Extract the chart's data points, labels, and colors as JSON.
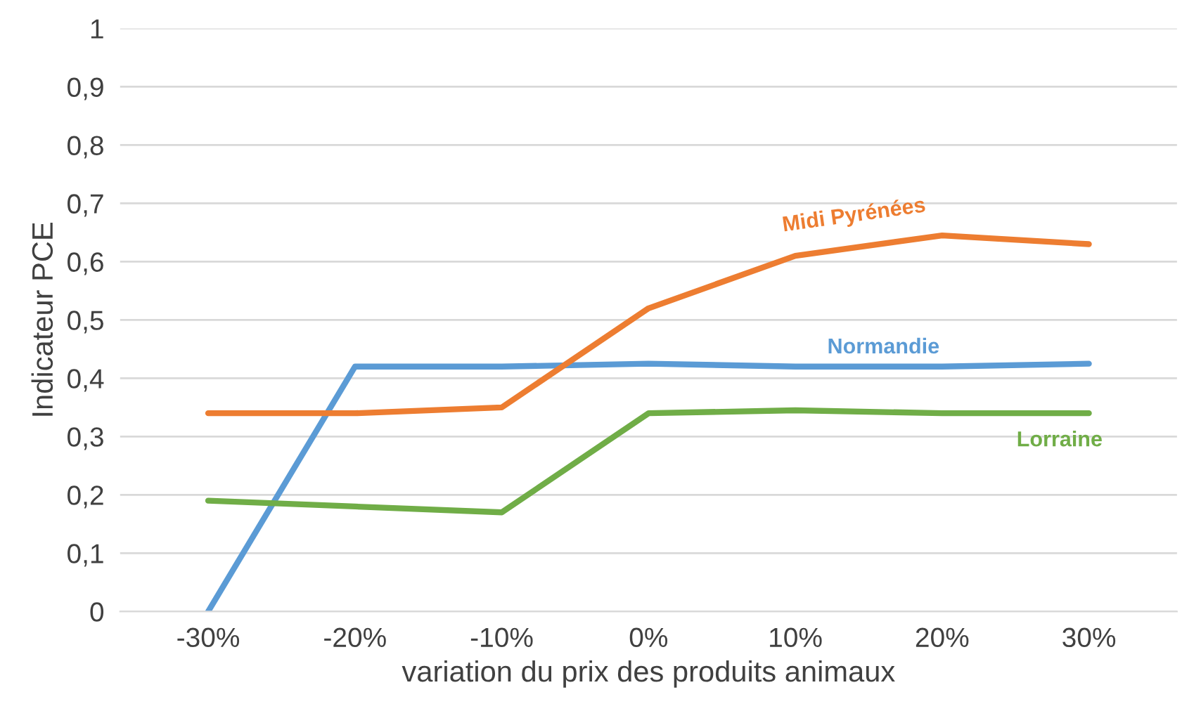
{
  "chart_data": {
    "type": "line",
    "xlabel": "variation du prix des produits animaux",
    "ylabel": "Indicateur PCE",
    "categories": [
      "-30%",
      "-20%",
      "-10%",
      "0%",
      "10%",
      "20%",
      "30%"
    ],
    "series": [
      {
        "name": "Normandie",
        "color": "#5b9bd5",
        "values": [
          0,
          0.42,
          0.42,
          0.425,
          0.42,
          0.42,
          0.425
        ]
      },
      {
        "name": "Midi Pyrénées",
        "color": "#ed7d31",
        "values": [
          0.34,
          0.34,
          0.35,
          0.52,
          0.61,
          0.645,
          0.63
        ]
      },
      {
        "name": "Lorraine",
        "color": "#70ad47",
        "values": [
          0.19,
          0.18,
          0.17,
          0.34,
          0.345,
          0.34,
          0.34
        ]
      }
    ],
    "ylim": [
      0,
      1
    ],
    "yticks": [
      0,
      {
        "value": 0.1,
        "label": "0,1"
      },
      {
        "value": 0.2,
        "label": "0,2"
      },
      {
        "value": 0.3,
        "label": "0,3"
      },
      {
        "value": 0.4,
        "label": "0,4"
      },
      {
        "value": 0.5,
        "label": "0,5"
      },
      {
        "value": 0.6,
        "label": "0,6"
      },
      {
        "value": 0.7,
        "label": "0,7"
      },
      {
        "value": 0.8,
        "label": "0,8"
      },
      {
        "value": 0.9,
        "label": "0,9"
      },
      1
    ],
    "grid": "y",
    "line_style": "solid",
    "marker": "none",
    "legend": false
  }
}
